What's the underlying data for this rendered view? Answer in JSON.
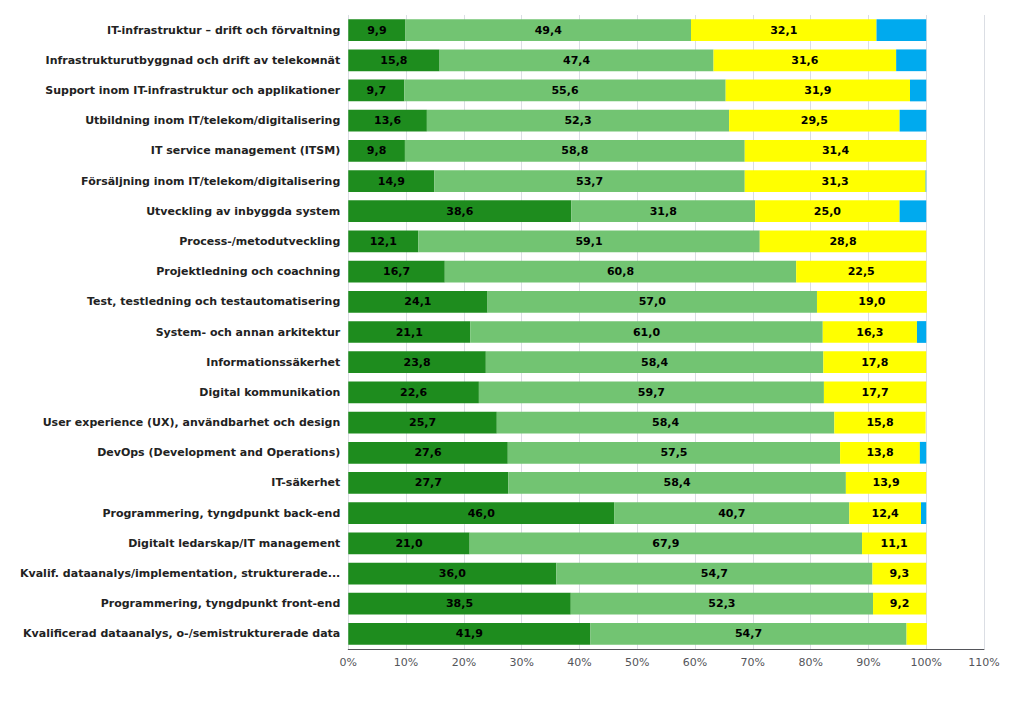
{
  "chart_data": {
    "type": "bar",
    "orientation": "horizontal",
    "stacked": true,
    "grid": true,
    "categories": [
      "Kvalificerad dataanalys, o-/semistrukturerade data",
      "Programmering, tyngdpunkt front-end",
      "Kvalif. dataanalys/implementation, strukturerade...",
      "Digitalt ledarskap/IT management",
      "Programmering, tyngdpunkt back-end",
      "IT-säkerhet",
      "DevOps (Development and Operations)",
      "User experience (UX), användbarhet och design",
      "Digital kommunikation",
      "Informationssäkerhet",
      "System- och annan arkitektur",
      "Test, testledning och testautomatisering",
      "Projektledning och coachning",
      "Process-/metodutveckling",
      "Utveckling av inbyggda system",
      "Försäljning inom IT/telekom/digitalisering",
      "IT service management (ITSM)",
      "Utbildning inom IT/telekom/digitalisering",
      "Support inom IT-infrastruktur och applikationer",
      "Infrastrukturutbyggnad och drift av telekомnät",
      "IT-infrastruktur – drift och förvaltning"
    ],
    "series": [
      {
        "color": "#1e8c1e",
        "data_labels": true,
        "values": [
          41.9,
          38.5,
          36.0,
          21.0,
          46.0,
          27.7,
          27.6,
          25.7,
          22.6,
          23.8,
          21.1,
          24.1,
          16.7,
          12.1,
          38.6,
          14.9,
          9.8,
          13.6,
          9.7,
          15.8,
          9.9
        ],
        "value_labels": [
          "41,9",
          "38,5",
          "36,0",
          "21,0",
          "46,0",
          "27,7",
          "27,6",
          "25,7",
          "22,6",
          "23,8",
          "21,1",
          "24,1",
          "16,7",
          "12,1",
          "38,6",
          "14,9",
          "9,8",
          "13,6",
          "9,7",
          "15,8",
          "9,9"
        ]
      },
      {
        "color": "#72c472",
        "data_labels": true,
        "values": [
          54.7,
          52.3,
          54.7,
          67.9,
          40.7,
          58.4,
          57.5,
          58.4,
          59.7,
          58.4,
          61.0,
          57.0,
          60.8,
          59.1,
          31.8,
          53.7,
          58.8,
          52.3,
          55.6,
          47.4,
          49.4
        ],
        "value_labels": [
          "54,7",
          "52,3",
          "54,7",
          "67,9",
          "40,7",
          "58,4",
          "57,5",
          "58,4",
          "59,7",
          "58,4",
          "61,0",
          "57,0",
          "60,8",
          "59,1",
          "31,8",
          "53,7",
          "58,8",
          "52,3",
          "55,6",
          "47,4",
          "49,4"
        ]
      },
      {
        "color": "#ffff00",
        "data_labels": true,
        "values": [
          3.5,
          9.2,
          9.3,
          11.1,
          12.4,
          13.9,
          13.8,
          15.8,
          17.7,
          17.8,
          16.3,
          19.0,
          22.5,
          28.8,
          25.0,
          31.3,
          31.4,
          29.5,
          31.9,
          31.6,
          32.1
        ],
        "value_labels": [
          null,
          "9,2",
          "9,3",
          "11,1",
          "12,4",
          "13,9",
          "13,8",
          "15,8",
          "17,7",
          "17,8",
          "16,3",
          "19,0",
          "22,5",
          "28,8",
          "25,0",
          "31,3",
          "31,4",
          "29,5",
          "31,9",
          "31,6",
          "32,1"
        ]
      },
      {
        "color": "#00aaee",
        "data_labels": false,
        "values": [
          0.0,
          0.0,
          0.0,
          0.0,
          0.9,
          0.0,
          1.1,
          0.0,
          0.0,
          0.0,
          1.6,
          0.0,
          0.0,
          0.0,
          4.6,
          0.1,
          0.0,
          4.6,
          2.8,
          5.2,
          8.6
        ]
      }
    ],
    "xlim": [
      0,
      110
    ],
    "xticks": [
      {
        "value": 0,
        "label": "0%"
      },
      {
        "value": 10,
        "label": "10%"
      },
      {
        "value": 20,
        "label": "20%"
      },
      {
        "value": 30,
        "label": "30%"
      },
      {
        "value": 40,
        "label": "40%"
      },
      {
        "value": 50,
        "label": "50%"
      },
      {
        "value": 60,
        "label": "60%"
      },
      {
        "value": 70,
        "label": "70%"
      },
      {
        "value": 80,
        "label": "80%"
      },
      {
        "value": 90,
        "label": "90%"
      },
      {
        "value": 100,
        "label": "100%"
      },
      {
        "value": 110,
        "label": "110%"
      }
    ]
  }
}
